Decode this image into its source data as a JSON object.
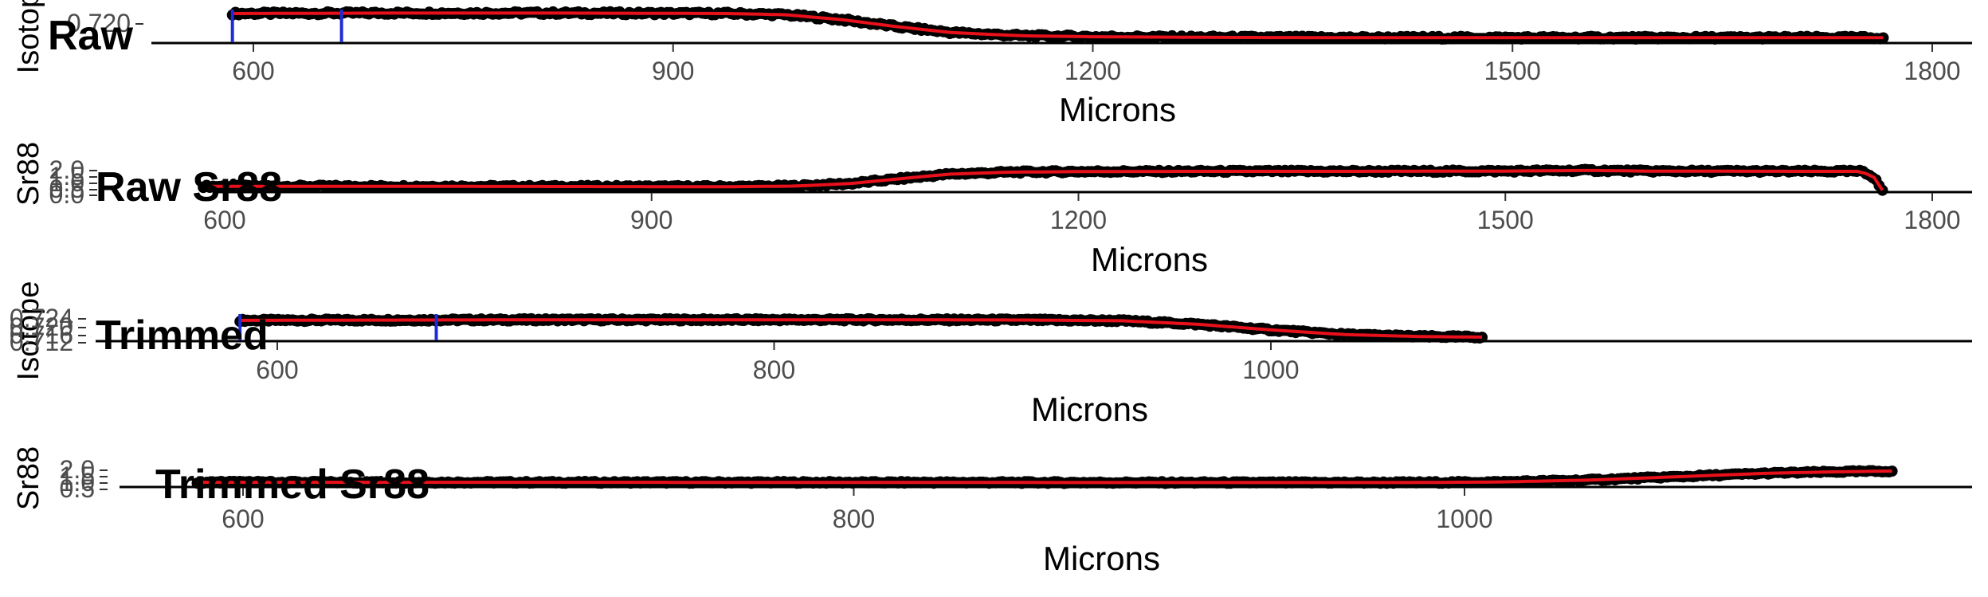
{
  "chart_data": [
    {
      "type": "scatter",
      "title": "Raw",
      "xlabel": "Microns",
      "ylabel": "Isotope",
      "xlim": [
        520,
        1830
      ],
      "ylim": [
        0.7085,
        0.7215
      ],
      "xticks": [
        600,
        900,
        1200,
        1500,
        1800
      ],
      "yticks": [
        "0.720"
      ],
      "colors": {
        "points": "#000000",
        "smooth": "#e8101a",
        "markers": "#1f2bd6"
      },
      "vlines": [
        585,
        663
      ],
      "x": [
        585,
        640,
        700,
        760,
        820,
        880,
        940,
        980,
        1020,
        1060,
        1100,
        1150,
        1200,
        1300,
        1400,
        1500,
        1600,
        1700,
        1765
      ],
      "y": [
        0.7205,
        0.7206,
        0.7207,
        0.7207,
        0.7207,
        0.7206,
        0.7205,
        0.72,
        0.718,
        0.715,
        0.7125,
        0.7112,
        0.7108,
        0.7105,
        0.7104,
        0.7104,
        0.7104,
        0.7104,
        0.7104
      ]
    },
    {
      "type": "scatter",
      "title": "Raw Sr88",
      "xlabel": "Microns",
      "ylabel": "Sr88",
      "xlim": [
        520,
        1830
      ],
      "ylim": [
        0.0,
        2.3
      ],
      "xticks": [
        600,
        900,
        1200,
        1500,
        1800
      ],
      "yticks": [
        "2.0",
        "1.5",
        "1.0",
        "0.5",
        "0.0"
      ],
      "colors": {
        "points": "#000000",
        "smooth": "#e8101a"
      },
      "x": [
        585,
        700,
        800,
        900,
        960,
        1000,
        1040,
        1080,
        1110,
        1150,
        1200,
        1300,
        1400,
        1500,
        1560,
        1600,
        1700,
        1750,
        1760,
        1765
      ],
      "y": [
        0.45,
        0.45,
        0.44,
        0.42,
        0.42,
        0.47,
        0.7,
        1.2,
        1.55,
        1.72,
        1.78,
        1.8,
        1.8,
        1.82,
        1.88,
        1.82,
        1.8,
        1.8,
        1.2,
        0.1
      ]
    },
    {
      "type": "scatter",
      "title": "Trimmed",
      "xlabel": "Microns",
      "ylabel": "Isotope",
      "xlim": [
        525,
        1100
      ],
      "ylim": [
        0.7095,
        0.7225
      ],
      "xticks": [
        600,
        800,
        1000
      ],
      "yticks": [
        "0.724",
        "0.720",
        "0.716",
        "0.712"
      ],
      "colors": {
        "points": "#000000",
        "smooth": "#e8101a",
        "markers": "#1f2bd6"
      },
      "vlines": [
        585,
        664
      ],
      "x": [
        585,
        620,
        660,
        700,
        750,
        800,
        850,
        900,
        940,
        970,
        1000,
        1030,
        1060,
        1085
      ],
      "y": [
        0.72,
        0.7201,
        0.7202,
        0.7203,
        0.7203,
        0.7203,
        0.7203,
        0.7202,
        0.7198,
        0.718,
        0.715,
        0.7125,
        0.7115,
        0.7112
      ]
    },
    {
      "type": "scatter",
      "title": "Trimmed Sr88",
      "xlabel": "Microns",
      "ylabel": "Sr88",
      "xlim": [
        550,
        1160
      ],
      "ylim": [
        0.0,
        2.3
      ],
      "xticks": [
        600,
        800,
        1000
      ],
      "yticks": [
        "2.0",
        "1.5",
        "1.0",
        "0.5"
      ],
      "colors": {
        "points": "#000000",
        "smooth": "#e8101a"
      },
      "x": [
        585,
        700,
        800,
        900,
        950,
        980,
        1010,
        1040,
        1070,
        1100,
        1120,
        1140
      ],
      "y": [
        0.45,
        0.45,
        0.44,
        0.42,
        0.42,
        0.42,
        0.48,
        0.7,
        1.1,
        1.5,
        1.65,
        1.75
      ]
    }
  ]
}
